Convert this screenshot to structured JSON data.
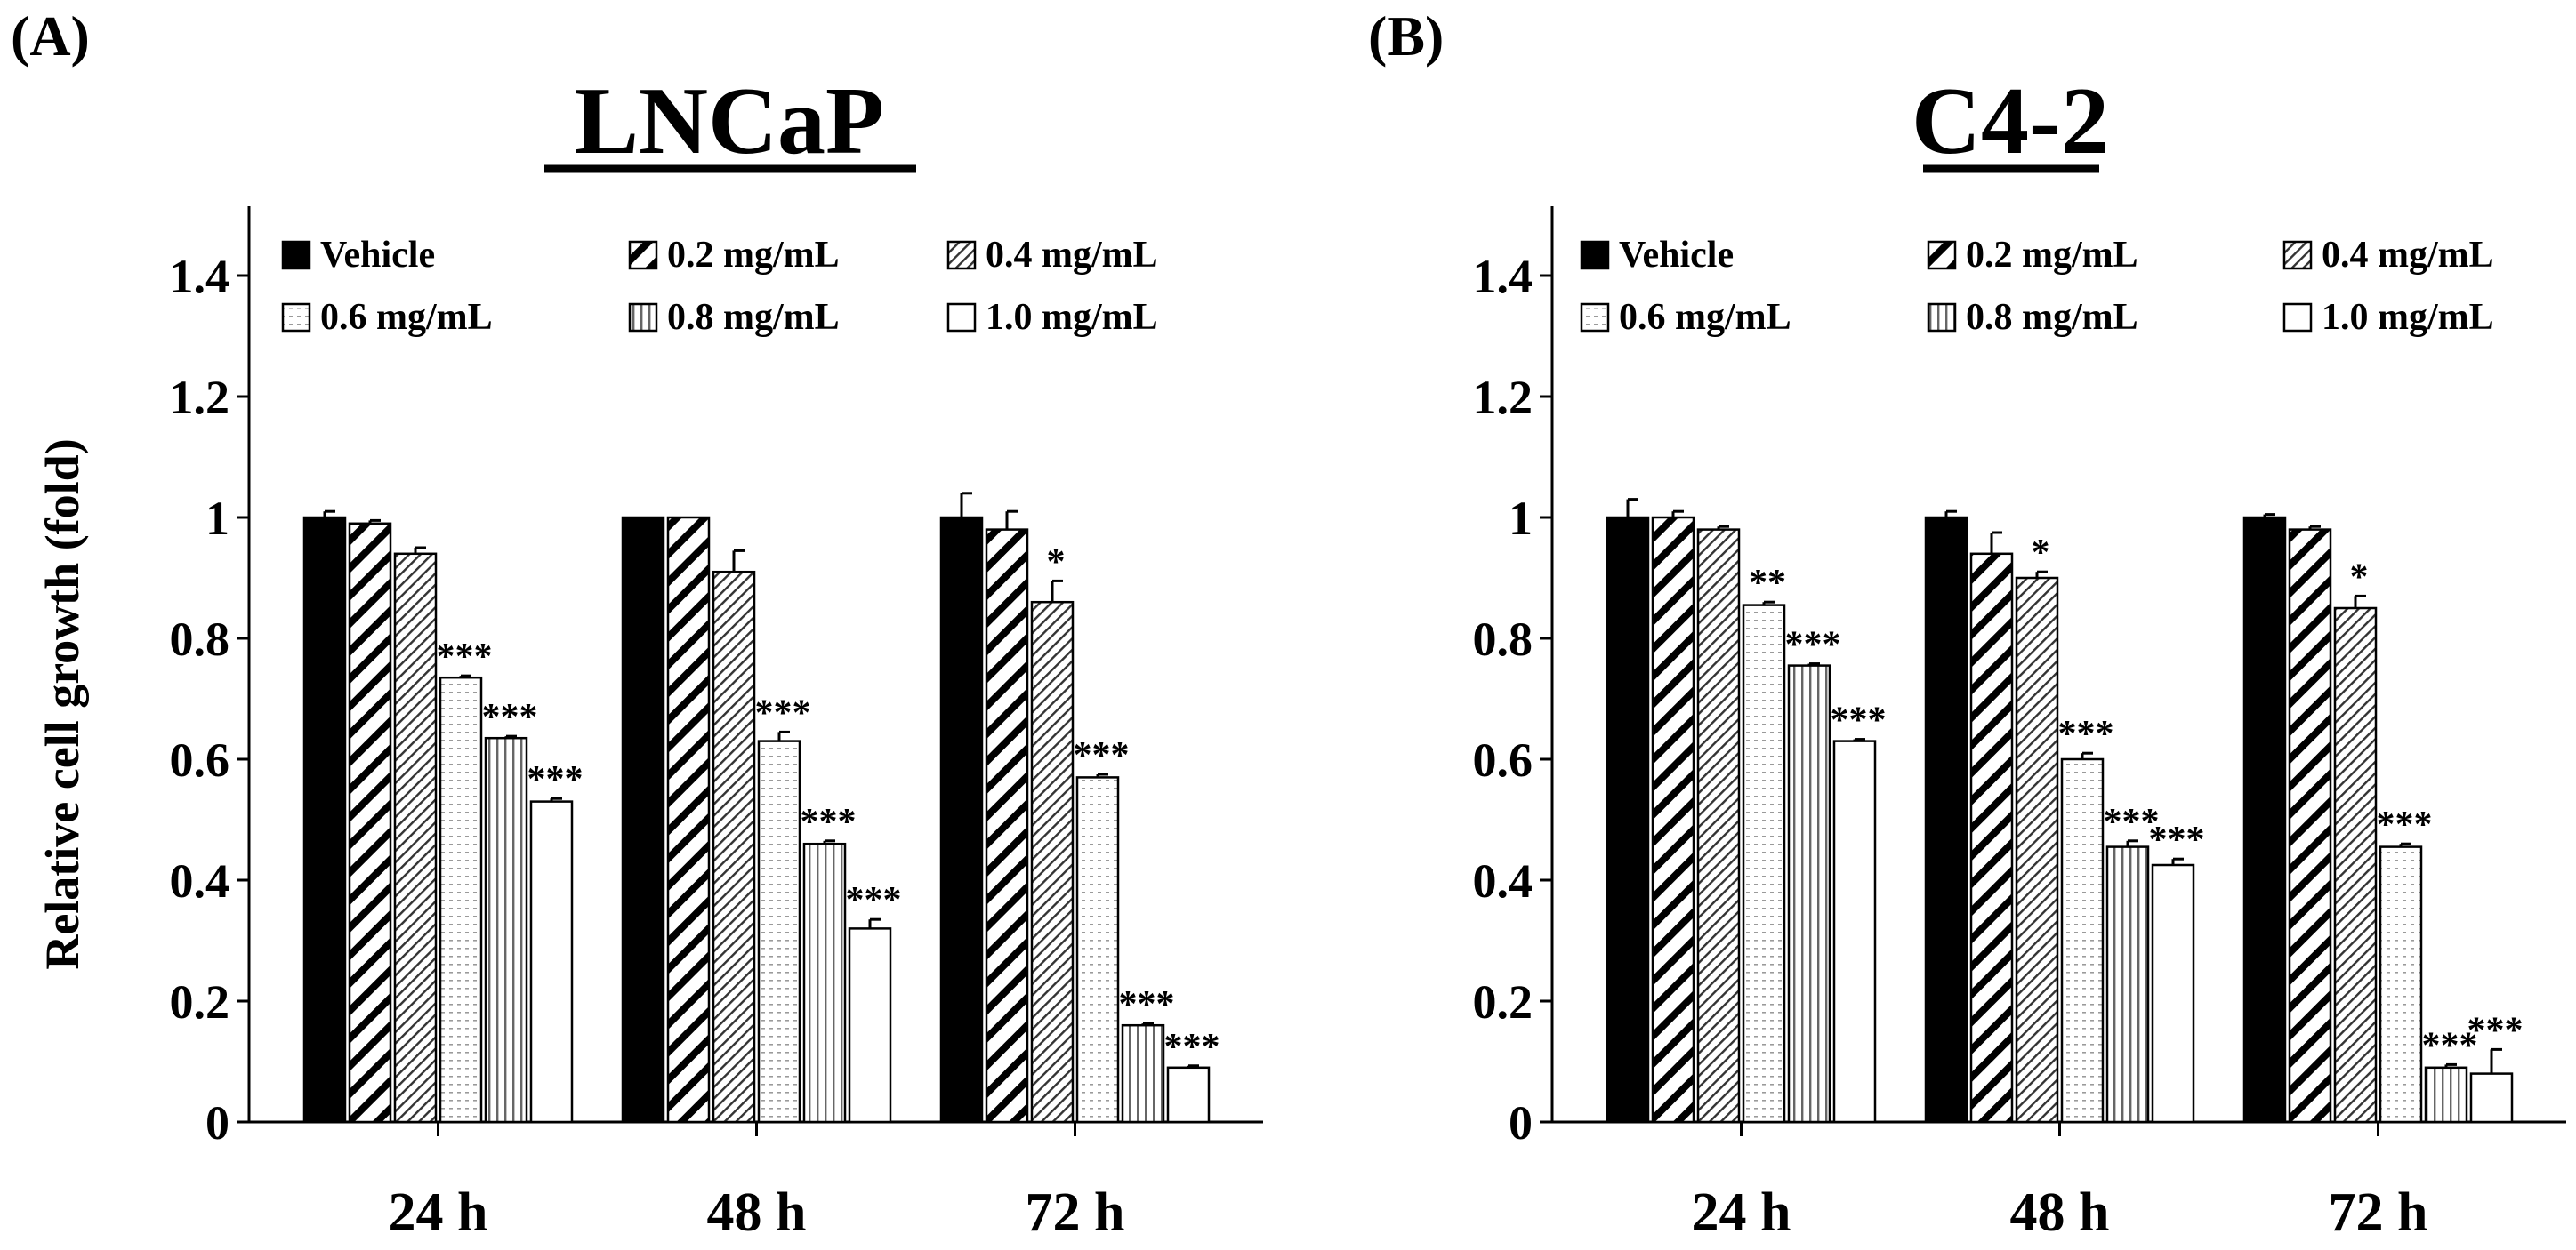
{
  "chart_data": [
    {
      "type": "bar",
      "panel_label": "(A)",
      "title": "LNCaP",
      "ylabel": "Relative cell growth (fold)",
      "xlabel": "",
      "ylim": [
        0,
        1.5
      ],
      "yticks": [
        0,
        0.2,
        0.4,
        0.6,
        0.8,
        1,
        1.2,
        1.4
      ],
      "ytick_labels": [
        "0",
        "0.2",
        "0.4",
        "0.6",
        "0.8",
        "1",
        "1.2",
        "1.4"
      ],
      "categories": [
        "24 h",
        "48 h",
        "72 h"
      ],
      "legend_position": "top",
      "series": [
        {
          "name": "Vehicle",
          "pattern": "solid",
          "values": [
            1.0,
            1.0,
            1.0
          ],
          "errors": [
            0.01,
            0.0,
            0.04
          ],
          "significance": [
            "",
            "",
            ""
          ]
        },
        {
          "name": "0.2 mg/mL",
          "pattern": "wide-diag",
          "values": [
            0.99,
            1.0,
            0.98
          ],
          "errors": [
            0.005,
            0.0,
            0.03
          ],
          "significance": [
            "",
            "",
            ""
          ]
        },
        {
          "name": "0.4 mg/mL",
          "pattern": "fine-diag",
          "values": [
            0.94,
            0.91,
            0.86
          ],
          "errors": [
            0.01,
            0.035,
            0.035
          ],
          "significance": [
            "",
            "",
            "*"
          ]
        },
        {
          "name": "0.6 mg/mL",
          "pattern": "dots",
          "values": [
            0.735,
            0.63,
            0.57
          ],
          "errors": [
            0.003,
            0.015,
            0.005
          ],
          "significance": [
            "***",
            "***",
            "***"
          ]
        },
        {
          "name": "0.8 mg/mL",
          "pattern": "vlines",
          "values": [
            0.635,
            0.46,
            0.16
          ],
          "errors": [
            0.003,
            0.005,
            0.003
          ],
          "significance": [
            "***",
            "***",
            "***"
          ]
        },
        {
          "name": "1.0 mg/mL",
          "pattern": "blank",
          "values": [
            0.53,
            0.32,
            0.09
          ],
          "errors": [
            0.005,
            0.015,
            0.003
          ],
          "significance": [
            "***",
            "***",
            "***"
          ]
        }
      ]
    },
    {
      "type": "bar",
      "panel_label": "(B)",
      "title": "C4-2",
      "ylabel": "",
      "xlabel": "",
      "ylim": [
        0,
        1.5
      ],
      "yticks": [
        0,
        0.2,
        0.4,
        0.6,
        0.8,
        1,
        1.2,
        1.4
      ],
      "ytick_labels": [
        "0",
        "0.2",
        "0.4",
        "0.6",
        "0.8",
        "1",
        "1.2",
        "1.4"
      ],
      "categories": [
        "24 h",
        "48 h",
        "72 h"
      ],
      "legend_position": "top",
      "series": [
        {
          "name": "Vehicle",
          "pattern": "solid",
          "values": [
            1.0,
            1.0,
            1.0
          ],
          "errors": [
            0.03,
            0.01,
            0.005
          ],
          "significance": [
            "",
            "",
            ""
          ]
        },
        {
          "name": "0.2 mg/mL",
          "pattern": "wide-diag",
          "values": [
            1.0,
            0.94,
            0.98
          ],
          "errors": [
            0.01,
            0.035,
            0.005
          ],
          "significance": [
            "",
            "",
            ""
          ]
        },
        {
          "name": "0.4 mg/mL",
          "pattern": "fine-diag",
          "values": [
            0.98,
            0.9,
            0.85
          ],
          "errors": [
            0.005,
            0.01,
            0.02
          ],
          "significance": [
            "",
            "*",
            "*"
          ]
        },
        {
          "name": "0.6 mg/mL",
          "pattern": "dots",
          "values": [
            0.855,
            0.6,
            0.455
          ],
          "errors": [
            0.005,
            0.01,
            0.005
          ],
          "significance": [
            "**",
            "***",
            "***"
          ]
        },
        {
          "name": "0.8 mg/mL",
          "pattern": "vlines",
          "values": [
            0.755,
            0.455,
            0.09
          ],
          "errors": [
            0.003,
            0.01,
            0.005
          ],
          "significance": [
            "***",
            "***",
            "***"
          ]
        },
        {
          "name": "1.0 mg/mL",
          "pattern": "blank",
          "values": [
            0.63,
            0.425,
            0.08
          ],
          "errors": [
            0.003,
            0.01,
            0.04
          ],
          "significance": [
            "***",
            "***",
            "***"
          ]
        }
      ]
    }
  ]
}
